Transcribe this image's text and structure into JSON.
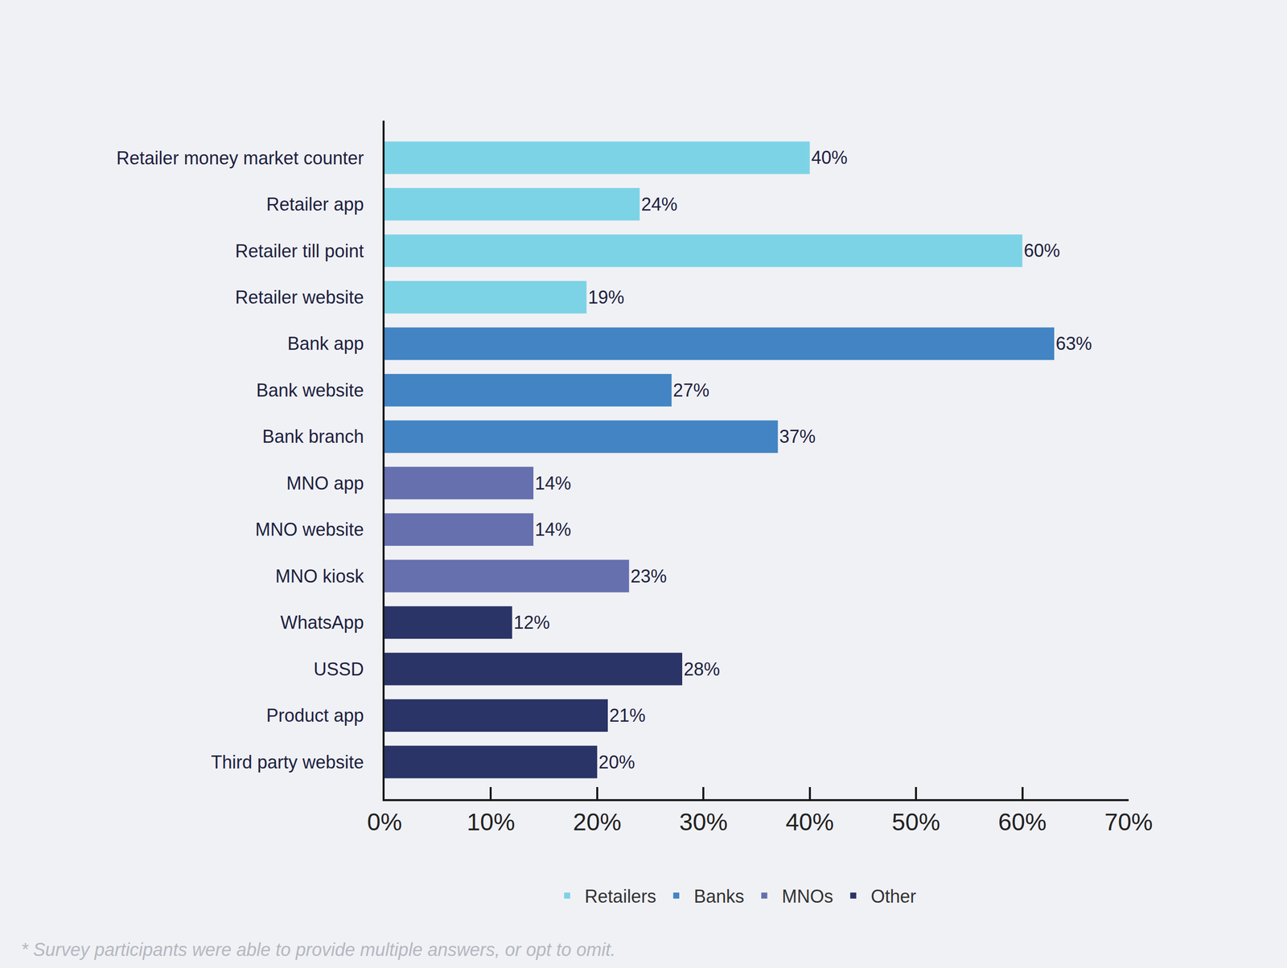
{
  "chart_data": {
    "type": "bar",
    "orientation": "horizontal",
    "categories": [
      "Retailer money market counter",
      "Retailer app",
      "Retailer till point",
      "Retailer website",
      "Bank app",
      "Bank website",
      "Bank branch",
      "MNO app",
      "MNO website",
      "MNO kiosk",
      "WhatsApp",
      "USSD",
      "Product app",
      "Third party website"
    ],
    "series": [
      {
        "name": "Retailers",
        "color": "#7dd3e6",
        "values": [
          40,
          24,
          60,
          19,
          null,
          null,
          null,
          null,
          null,
          null,
          null,
          null,
          null,
          null
        ],
        "value_labels": [
          "40%",
          "24%",
          "60%",
          "19%",
          null,
          null,
          null,
          null,
          null,
          null,
          null,
          null,
          null,
          null
        ]
      },
      {
        "name": "Banks",
        "color": "#4384c4",
        "values": [
          null,
          null,
          null,
          null,
          63,
          27,
          37,
          null,
          null,
          null,
          null,
          null,
          null,
          null
        ],
        "value_labels": [
          null,
          null,
          null,
          null,
          "63%",
          "27%",
          "37%",
          null,
          null,
          null,
          null,
          null,
          null,
          null
        ]
      },
      {
        "name": "MNOs",
        "color": "#6670ae",
        "values": [
          null,
          null,
          null,
          null,
          null,
          null,
          null,
          14,
          14,
          23,
          null,
          null,
          null,
          null
        ],
        "value_labels": [
          null,
          null,
          null,
          null,
          null,
          null,
          null,
          "14%",
          "14%",
          "23%",
          null,
          null,
          null,
          null
        ]
      },
      {
        "name": "Other",
        "color": "#2b3466",
        "values": [
          null,
          null,
          null,
          null,
          null,
          null,
          null,
          null,
          null,
          null,
          12,
          28,
          21,
          20
        ],
        "value_labels": [
          null,
          null,
          null,
          null,
          null,
          null,
          null,
          null,
          null,
          null,
          "12%",
          "28%",
          "21%",
          "20%"
        ]
      }
    ],
    "xlim": [
      0,
      70
    ],
    "xticks": [
      {
        "value": 0,
        "label": "0%"
      },
      {
        "value": 10,
        "label": "10%"
      },
      {
        "value": 20,
        "label": "20%"
      },
      {
        "value": 30,
        "label": "30%"
      },
      {
        "value": 40,
        "label": "40%"
      },
      {
        "value": 50,
        "label": "50%"
      },
      {
        "value": 60,
        "label": "60%"
      },
      {
        "value": 70,
        "label": "70%"
      }
    ],
    "grid": false,
    "data_labels": true,
    "legend": "bottom",
    "footnote": "* Survey participants were able to provide multiple answers, or opt to omit."
  }
}
